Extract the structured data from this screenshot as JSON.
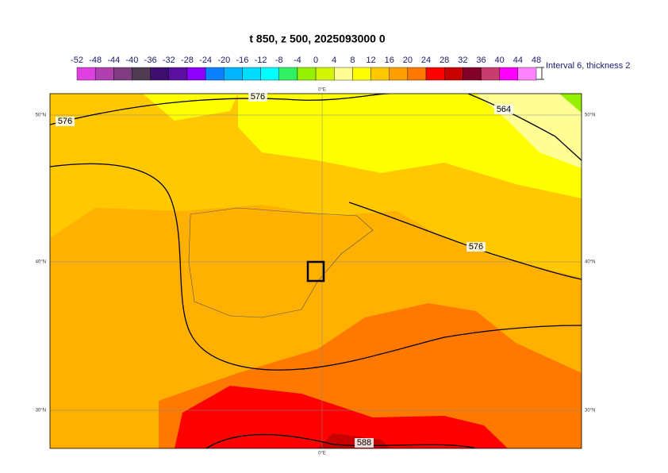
{
  "title": "t 850, z 500, 2025093000 0",
  "colorbar": {
    "labels": [
      -52,
      -48,
      -44,
      -40,
      -36,
      -32,
      -28,
      -24,
      -20,
      -16,
      -12,
      -8,
      -4,
      0,
      4,
      8,
      12,
      16,
      20,
      24,
      28,
      32,
      36,
      40,
      44,
      48
    ],
    "colors": [
      "#e040e0",
      "#b040b0",
      "#803c80",
      "#503c50",
      "#3c0f6e",
      "#5a0fa0",
      "#8c00ff",
      "#0a82ff",
      "#00b4ff",
      "#00dcff",
      "#00ffff",
      "#32f064",
      "#96f000",
      "#d2f500",
      "#ffff96",
      "#ffff00",
      "#ffc800",
      "#ffa000",
      "#ff7800",
      "#ff0000",
      "#c80000",
      "#820028",
      "#c83c6e",
      "#ff00ff",
      "#ff82ff",
      "#ffc8ff"
    ],
    "note": "Interval 6, thickness 2"
  },
  "map": {
    "lat_labels": [
      "50°N",
      "40°N",
      "30°N"
    ],
    "lon_labels": [
      "0°E"
    ],
    "contour_labels": [
      576,
      576,
      564,
      576,
      588
    ]
  }
}
